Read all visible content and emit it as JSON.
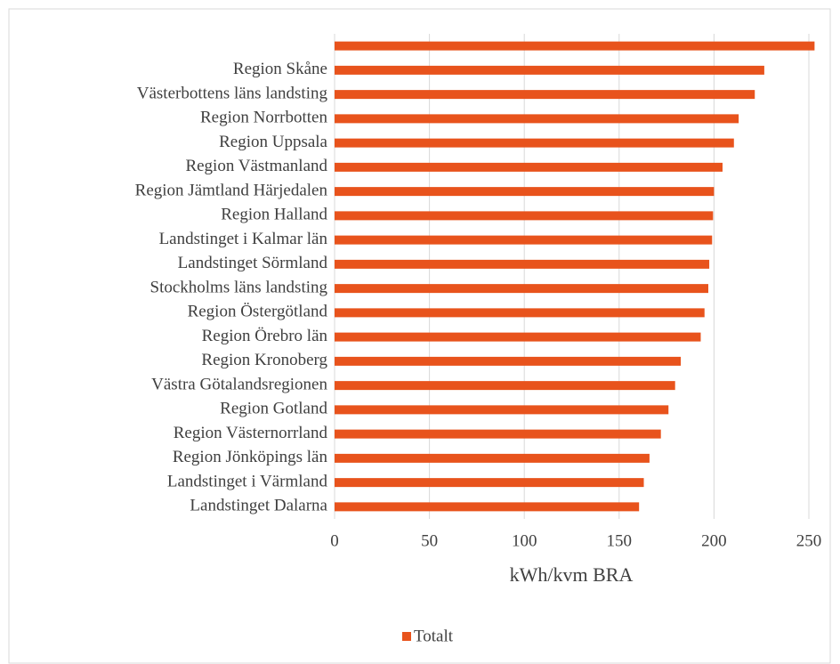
{
  "chart_data": {
    "type": "barh",
    "categories": [
      null,
      "Region Skåne",
      "Västerbottens läns landsting",
      "Region Norrbotten",
      "Region Uppsala",
      "Region Västmanland",
      "Region Jämtland Härjedalen",
      "Region Halland",
      "Landstinget i Kalmar län",
      "Landstinget Sörmland",
      "Stockholms läns landsting",
      "Region Östergötland",
      "Region Örebro län",
      "Region Kronoberg",
      "Västra Götalandsregionen",
      "Region Gotland",
      "Region Västernorrland",
      "Region Jönköpings län",
      "Landstinget i Värmland",
      "Landstinget Dalarna"
    ],
    "series": [
      {
        "name": "Totalt",
        "color": "#e8531c",
        "values": [
          253,
          226.5,
          221.5,
          213,
          210.5,
          204.5,
          200,
          199.5,
          199,
          197.5,
          197,
          195,
          193,
          182.5,
          179.5,
          176,
          172,
          166,
          163,
          160.5
        ]
      }
    ],
    "xlabel": "kWh/kvm BRA",
    "xlim": [
      0,
      250
    ],
    "xticks": [
      0,
      50,
      100,
      150,
      200,
      250
    ],
    "grid": true,
    "legend": "bottom"
  }
}
